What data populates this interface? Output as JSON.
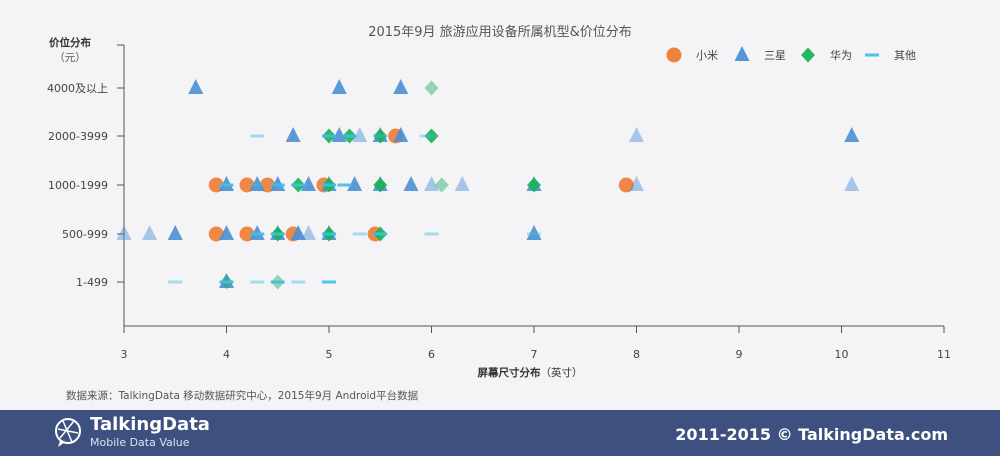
{
  "chart_data": {
    "type": "scatter",
    "title": "2015年9月 旅游应用设备所属机型&价位分布",
    "ylabel_main": "价位分布",
    "ylabel_unit": "（元）",
    "xlabel_main": "屏幕尺寸分布",
    "xlabel_unit": "（英寸）",
    "x_ticks": [
      "3",
      "4",
      "5",
      "6",
      "7",
      "8",
      "9",
      "10",
      "11"
    ],
    "y_categories": [
      "1-499",
      "500-999",
      "1000-1999",
      "2000-3999",
      "4000及以上"
    ],
    "xlim": [
      3,
      11
    ],
    "series": [
      {
        "name": "小米",
        "color": "#ee7b33",
        "marker": "circle",
        "points": [
          {
            "x": 3.9,
            "y": "1000-1999",
            "light": false
          },
          {
            "x": 4.2,
            "y": "1000-1999",
            "light": false
          },
          {
            "x": 4.4,
            "y": "1000-1999",
            "light": false
          },
          {
            "x": 4.95,
            "y": "1000-1999",
            "light": false
          },
          {
            "x": 5.65,
            "y": "2000-3999",
            "light": false
          },
          {
            "x": 7.9,
            "y": "1000-1999",
            "light": false
          },
          {
            "x": 3.9,
            "y": "500-999",
            "light": false
          },
          {
            "x": 4.2,
            "y": "500-999",
            "light": false
          },
          {
            "x": 4.65,
            "y": "500-999",
            "light": false
          },
          {
            "x": 5.45,
            "y": "500-999",
            "light": false
          }
        ]
      },
      {
        "name": "三星",
        "color": "#4a8fd4",
        "marker": "triangle",
        "points": [
          {
            "x": 3.7,
            "y": "4000及以上",
            "light": false
          },
          {
            "x": 5.1,
            "y": "4000及以上",
            "light": false
          },
          {
            "x": 5.7,
            "y": "4000及以上",
            "light": false
          },
          {
            "x": 4.65,
            "y": "2000-3999",
            "light": false
          },
          {
            "x": 5.1,
            "y": "2000-3999",
            "light": false
          },
          {
            "x": 5.3,
            "y": "2000-3999",
            "light": true
          },
          {
            "x": 5.5,
            "y": "2000-3999",
            "light": false
          },
          {
            "x": 5.7,
            "y": "2000-3999",
            "light": false
          },
          {
            "x": 8.0,
            "y": "2000-3999",
            "light": true
          },
          {
            "x": 10.1,
            "y": "2000-3999",
            "light": false
          },
          {
            "x": 4.0,
            "y": "1000-1999",
            "light": false
          },
          {
            "x": 4.3,
            "y": "1000-1999",
            "light": false
          },
          {
            "x": 4.5,
            "y": "1000-1999",
            "light": false
          },
          {
            "x": 4.8,
            "y": "1000-1999",
            "light": false
          },
          {
            "x": 5.0,
            "y": "1000-1999",
            "light": false
          },
          {
            "x": 5.25,
            "y": "1000-1999",
            "light": false
          },
          {
            "x": 5.5,
            "y": "1000-1999",
            "light": false
          },
          {
            "x": 5.8,
            "y": "1000-1999",
            "light": false
          },
          {
            "x": 6.0,
            "y": "1000-1999",
            "light": true
          },
          {
            "x": 6.3,
            "y": "1000-1999",
            "light": true
          },
          {
            "x": 7.0,
            "y": "1000-1999",
            "light": false
          },
          {
            "x": 8.0,
            "y": "1000-1999",
            "light": true
          },
          {
            "x": 10.1,
            "y": "1000-1999",
            "light": true
          },
          {
            "x": 3.0,
            "y": "500-999",
            "light": true
          },
          {
            "x": 3.25,
            "y": "500-999",
            "light": true
          },
          {
            "x": 3.5,
            "y": "500-999",
            "light": false
          },
          {
            "x": 4.0,
            "y": "500-999",
            "light": false
          },
          {
            "x": 4.3,
            "y": "500-999",
            "light": false
          },
          {
            "x": 4.5,
            "y": "500-999",
            "light": false
          },
          {
            "x": 4.7,
            "y": "500-999",
            "light": false
          },
          {
            "x": 4.8,
            "y": "500-999",
            "light": true
          },
          {
            "x": 5.0,
            "y": "500-999",
            "light": false
          },
          {
            "x": 7.0,
            "y": "500-999",
            "light": false
          },
          {
            "x": 4.0,
            "y": "1-499",
            "light": false
          }
        ]
      },
      {
        "name": "华为",
        "color": "#18b25a",
        "marker": "diamond",
        "points": [
          {
            "x": 6.0,
            "y": "4000及以上",
            "light": true
          },
          {
            "x": 5.0,
            "y": "2000-3999",
            "light": false
          },
          {
            "x": 5.2,
            "y": "2000-3999",
            "light": false
          },
          {
            "x": 5.5,
            "y": "2000-3999",
            "light": false
          },
          {
            "x": 6.0,
            "y": "2000-3999",
            "light": false
          },
          {
            "x": 4.7,
            "y": "1000-1999",
            "light": false
          },
          {
            "x": 5.0,
            "y": "1000-1999",
            "light": false
          },
          {
            "x": 5.5,
            "y": "1000-1999",
            "light": false
          },
          {
            "x": 6.1,
            "y": "1000-1999",
            "light": true
          },
          {
            "x": 7.0,
            "y": "1000-1999",
            "light": false
          },
          {
            "x": 4.5,
            "y": "500-999",
            "light": false
          },
          {
            "x": 5.0,
            "y": "500-999",
            "light": false
          },
          {
            "x": 5.5,
            "y": "500-999",
            "light": false
          },
          {
            "x": 4.0,
            "y": "1-499",
            "light": true
          },
          {
            "x": 4.5,
            "y": "1-499",
            "light": true
          }
        ]
      },
      {
        "name": "其他",
        "color": "#3ec0e3",
        "marker": "dash",
        "points": [
          {
            "x": 4.3,
            "y": "2000-3999",
            "light": true
          },
          {
            "x": 5.0,
            "y": "2000-3999",
            "light": false
          },
          {
            "x": 5.2,
            "y": "2000-3999",
            "light": false
          },
          {
            "x": 5.5,
            "y": "2000-3999",
            "light": true
          },
          {
            "x": 5.95,
            "y": "2000-3999",
            "light": true
          },
          {
            "x": 4.0,
            "y": "1000-1999",
            "light": false
          },
          {
            "x": 4.3,
            "y": "1000-1999",
            "light": true
          },
          {
            "x": 4.5,
            "y": "1000-1999",
            "light": false
          },
          {
            "x": 4.7,
            "y": "1000-1999",
            "light": false
          },
          {
            "x": 5.0,
            "y": "1000-1999",
            "light": false
          },
          {
            "x": 5.15,
            "y": "1000-1999",
            "light": false
          },
          {
            "x": 4.3,
            "y": "500-999",
            "light": false
          },
          {
            "x": 4.5,
            "y": "500-999",
            "light": false
          },
          {
            "x": 5.0,
            "y": "500-999",
            "light": false
          },
          {
            "x": 5.3,
            "y": "500-999",
            "light": true
          },
          {
            "x": 5.5,
            "y": "500-999",
            "light": false
          },
          {
            "x": 6.0,
            "y": "500-999",
            "light": true
          },
          {
            "x": 7.0,
            "y": "500-999",
            "light": true
          },
          {
            "x": 3.5,
            "y": "1-499",
            "light": true
          },
          {
            "x": 4.0,
            "y": "1-499",
            "light": false
          },
          {
            "x": 4.3,
            "y": "1-499",
            "light": true
          },
          {
            "x": 4.5,
            "y": "1-499",
            "light": false
          },
          {
            "x": 4.7,
            "y": "1-499",
            "light": true
          },
          {
            "x": 5.0,
            "y": "1-499",
            "light": false
          }
        ]
      }
    ],
    "legend_position": "top-right"
  },
  "source_note": "数据来源：TalkingData 移动数据研究中心，2015年9月 Android平台数据",
  "footer": {
    "brand": "TalkingData",
    "tagline": "Mobile Data Value",
    "copyright": "2011-2015 © TalkingData.com",
    "bg_color": "#3e5080"
  }
}
